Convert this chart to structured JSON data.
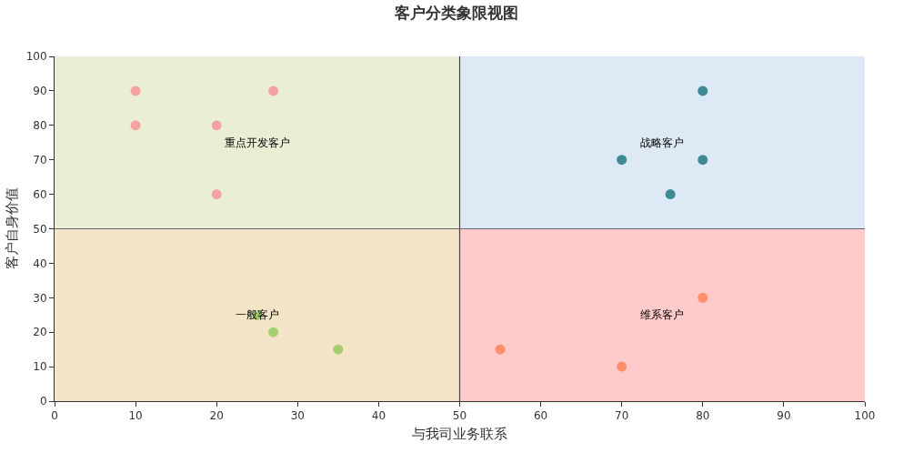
{
  "chart_data": {
    "type": "scatter",
    "title": "客户分类象限视图",
    "xlabel": "与我司业务联系",
    "ylabel": "客户自身价值",
    "xlim": [
      0,
      100
    ],
    "xticks": [
      0,
      10,
      20,
      30,
      40,
      50,
      60,
      70,
      80,
      90,
      100
    ],
    "ylim": [
      0,
      100
    ],
    "yticks": [
      0,
      10,
      20,
      30,
      40,
      50,
      60,
      70,
      80,
      90,
      100
    ],
    "grid": false,
    "marker": "circle",
    "series": [
      {
        "color": "#f4a3a3",
        "x": [
          10,
          10,
          20,
          20,
          27
        ],
        "values": [
          90,
          80,
          80,
          60,
          90
        ]
      },
      {
        "color": "#3f8a93",
        "x": [
          80,
          70,
          80,
          76
        ],
        "values": [
          90,
          70,
          70,
          60
        ]
      },
      {
        "color": "#a3cf6c",
        "x": [
          25,
          27,
          35
        ],
        "values": [
          25,
          20,
          15
        ]
      },
      {
        "color": "#ff8f6b",
        "x": [
          80,
          55,
          70
        ],
        "values": [
          30,
          15,
          10
        ]
      }
    ],
    "bands": [
      {
        "axis": "y",
        "from": 50,
        "to": 100,
        "color": "#dde9f5"
      },
      {
        "axis": "y",
        "from": 0,
        "to": 50,
        "color": "#ffcaca"
      },
      {
        "axis": "x",
        "from": 0,
        "to": 50,
        "color": "#f0f0c8"
      }
    ],
    "annotations": [
      "重点开发客户",
      "战略客户",
      "一般客户",
      "维系客户"
    ],
    "ref_lines": [
      {
        "axis": "x",
        "value": 50,
        "color": "#444444"
      },
      {
        "axis": "y",
        "value": 50,
        "color": "#666666"
      }
    ]
  }
}
